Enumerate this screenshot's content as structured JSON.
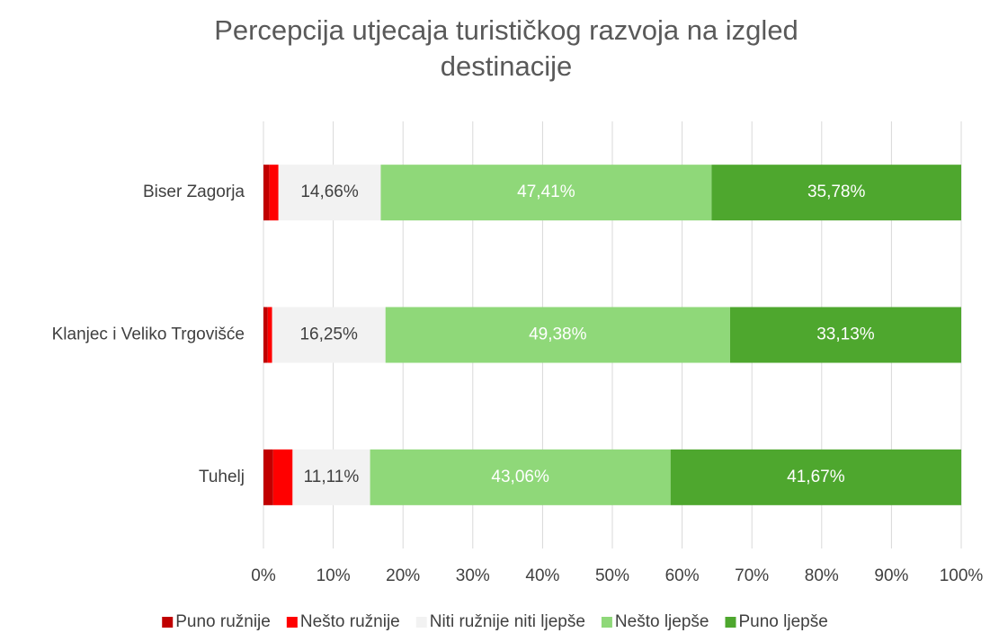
{
  "chart_data": {
    "type": "stacked_barh",
    "title": "Percepcija utjecaja turističkog razvoja na izgled destinacije",
    "categories": [
      "Biser Zagorja",
      "Klanjec i Veliko Trgovišće",
      "Tuhelj"
    ],
    "series": [
      {
        "name": "Puno ružnije",
        "color": "#c00000",
        "values": [
          0.86,
          0.62,
          1.39
        ]
      },
      {
        "name": "Nešto ružnije",
        "color": "#ff0000",
        "values": [
          1.29,
          0.62,
          2.78
        ]
      },
      {
        "name": "Niti ružnije niti ljepše",
        "color": "#f2f2f2",
        "values": [
          14.66,
          16.25,
          11.11
        ],
        "value_labels": [
          "14,66%",
          "16,25%",
          "11,11%"
        ]
      },
      {
        "name": "Nešto ljepše",
        "color": "#8fd879",
        "values": [
          47.41,
          49.38,
          43.06
        ],
        "value_labels": [
          "47,41%",
          "49,38%",
          "43,06%"
        ]
      },
      {
        "name": "Puno ljepše",
        "color": "#4ea72e",
        "values": [
          35.78,
          33.13,
          41.67
        ],
        "value_labels": [
          "35,78%",
          "33,13%",
          "41,67%"
        ]
      }
    ],
    "xlim": [
      0,
      100
    ],
    "xticks": [
      {
        "value": 0,
        "label": "0%"
      },
      {
        "value": 10,
        "label": "10%"
      },
      {
        "value": 20,
        "label": "20%"
      },
      {
        "value": 30,
        "label": "30%"
      },
      {
        "value": 40,
        "label": "40%"
      },
      {
        "value": 50,
        "label": "50%"
      },
      {
        "value": 60,
        "label": "60%"
      },
      {
        "value": 70,
        "label": "70%"
      },
      {
        "value": 80,
        "label": "80%"
      },
      {
        "value": 90,
        "label": "90%"
      },
      {
        "value": 100,
        "label": "100%"
      }
    ],
    "grid": true,
    "legend": "bottom"
  }
}
